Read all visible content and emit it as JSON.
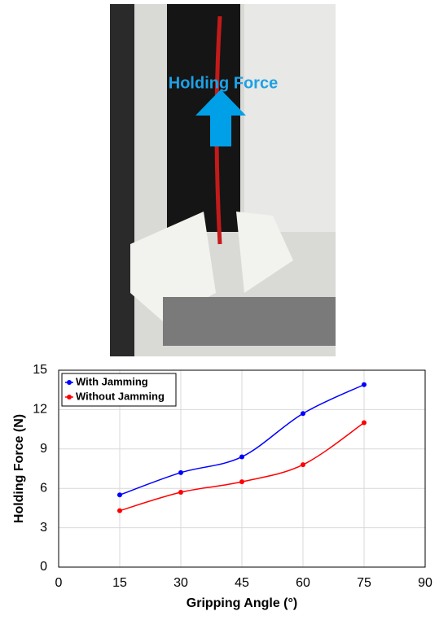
{
  "photo": {
    "caption": "Holding Force"
  },
  "chart_data": {
    "type": "line",
    "x_label": "Gripping Angle (°)",
    "y_label": "Holding Force (N)",
    "x": [
      15,
      30,
      45,
      60,
      75
    ],
    "series": [
      {
        "name": "With Jamming",
        "color": "#0000ff",
        "values": [
          5.5,
          7.2,
          8.4,
          11.7,
          13.9
        ]
      },
      {
        "name": "Without Jamming",
        "color": "#ff0000",
        "values": [
          4.3,
          5.7,
          6.5,
          7.8,
          11.0
        ]
      }
    ],
    "xlim": [
      0,
      90
    ],
    "xticks": [
      0,
      15,
      30,
      45,
      60,
      75,
      90
    ],
    "ylim": [
      0,
      15
    ],
    "yticks": [
      0,
      3,
      6,
      9,
      12,
      15
    ],
    "grid": true,
    "legend": "upper left",
    "smooth": true
  }
}
